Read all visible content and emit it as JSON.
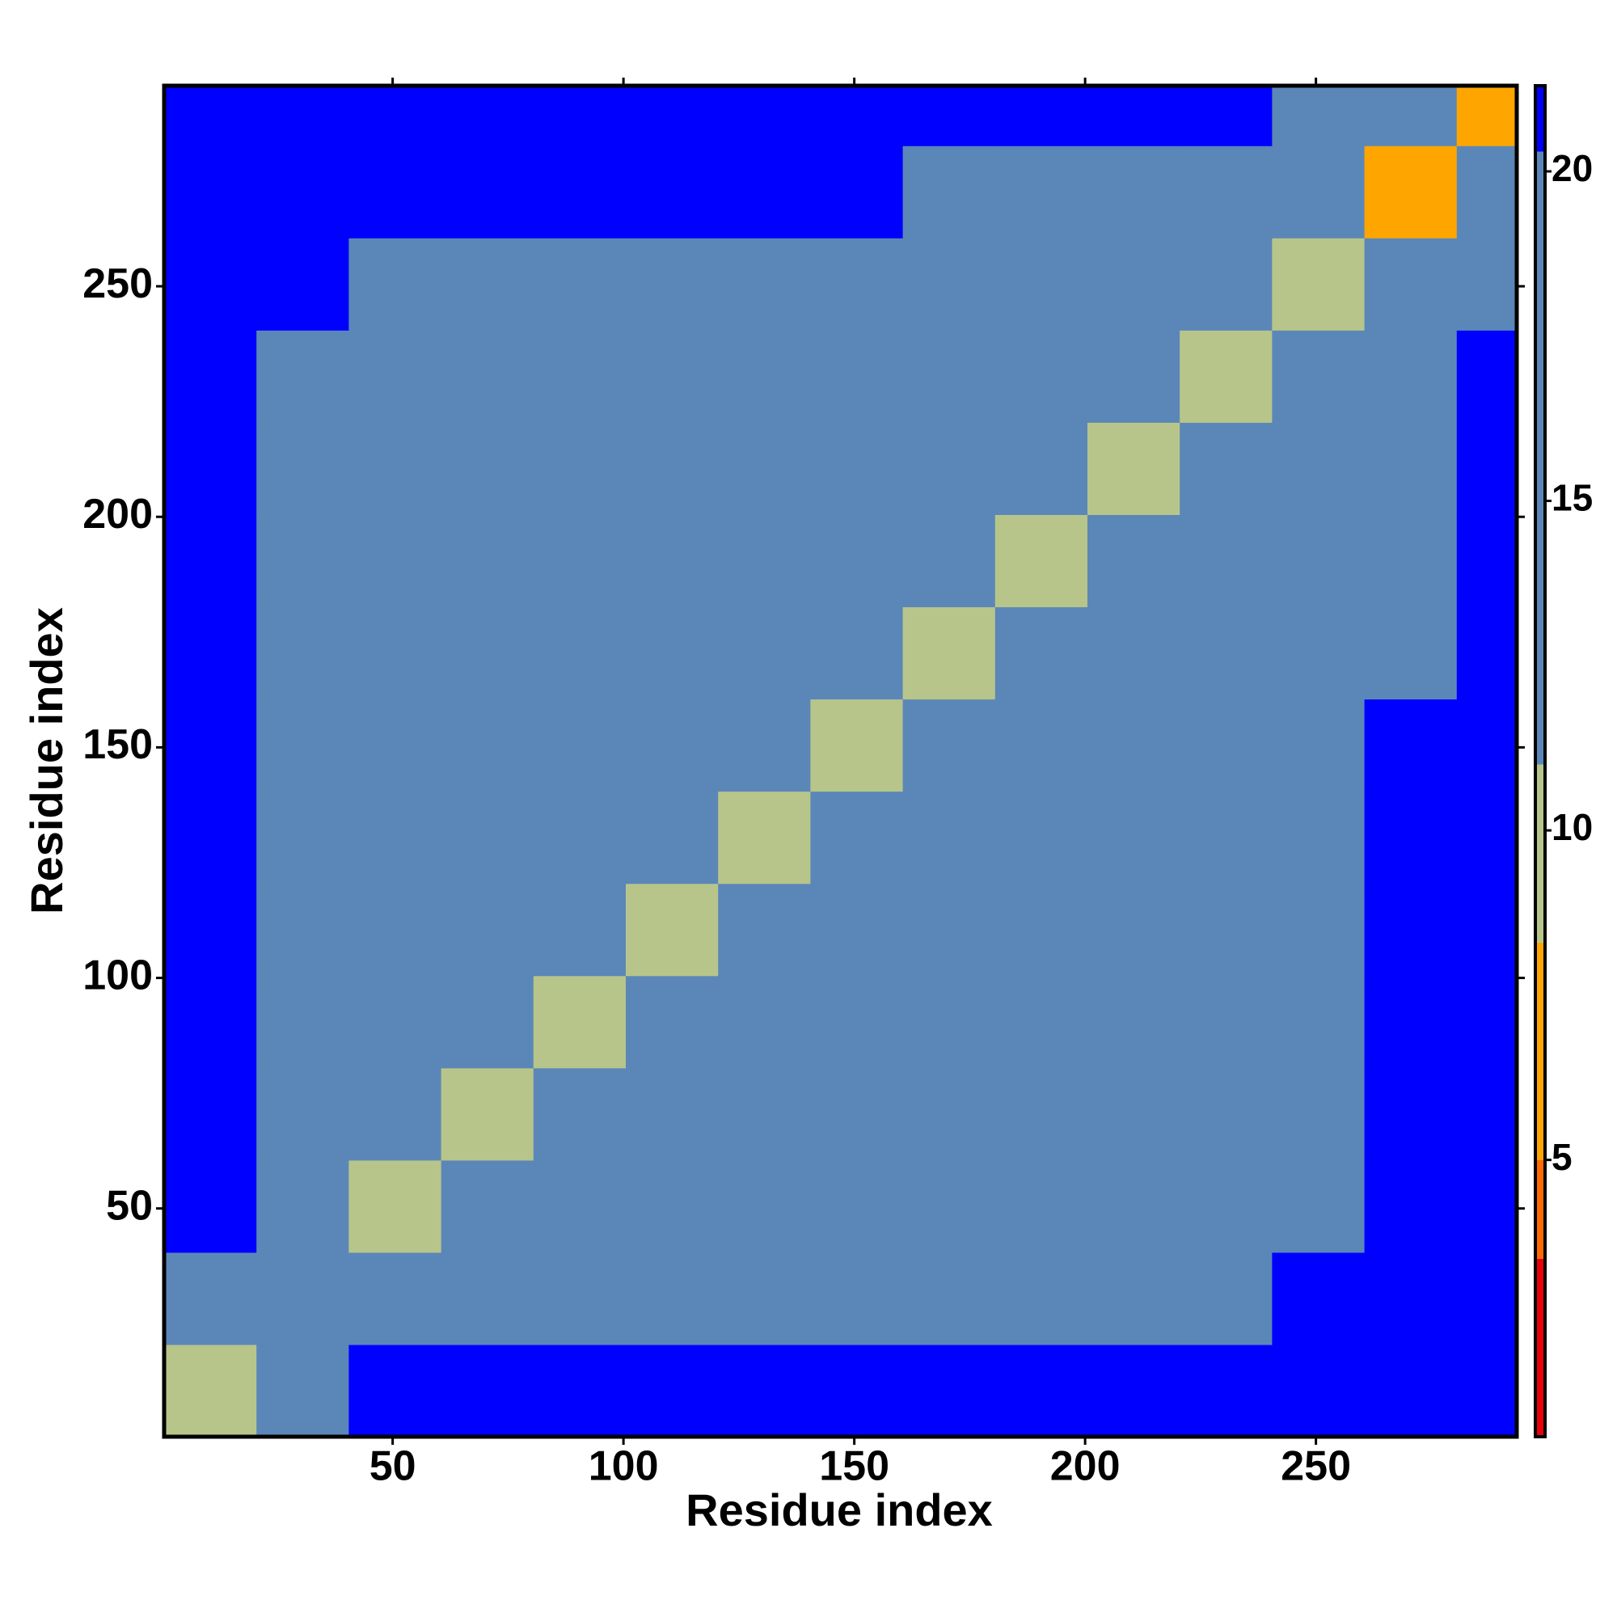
{
  "chart_data": {
    "type": "heatmap",
    "xlabel": "Residue index",
    "ylabel": "Residue index",
    "bins": [
      0.5,
      20.5,
      40.5,
      60.5,
      80.5,
      100.5,
      120.5,
      140.5,
      160.5,
      180.5,
      200.5,
      220.5,
      240.5,
      260.5,
      280.5,
      293.5
    ],
    "values": [
      [
        9,
        19,
        21,
        21,
        21,
        21,
        21,
        21,
        21,
        21,
        21,
        21,
        21,
        21,
        21
      ],
      [
        19,
        12,
        15,
        16,
        17,
        17,
        18,
        20,
        20,
        20,
        20,
        20,
        21,
        21,
        21
      ],
      [
        21,
        15,
        9,
        13,
        14,
        15,
        14,
        17,
        18,
        19,
        18,
        18,
        20,
        21,
        21
      ],
      [
        21,
        16,
        13,
        9,
        12,
        13,
        13,
        17,
        18,
        18,
        18,
        18,
        19,
        21,
        21
      ],
      [
        21,
        17,
        14,
        12,
        9,
        11,
        13,
        17,
        18,
        18,
        18,
        18,
        19,
        21,
        21
      ],
      [
        21,
        17,
        15,
        13,
        11,
        9,
        11,
        16,
        17,
        18,
        18,
        18,
        19,
        21,
        21
      ],
      [
        21,
        18,
        14,
        13,
        13,
        11,
        9,
        13,
        17,
        18,
        18,
        18,
        19,
        21,
        21
      ],
      [
        21,
        20,
        17,
        17,
        17,
        16,
        13,
        9,
        12,
        14,
        15,
        15,
        18,
        21,
        21
      ],
      [
        21,
        20,
        18,
        18,
        18,
        17,
        17,
        12,
        9,
        11,
        13,
        14,
        17,
        20,
        21
      ],
      [
        21,
        20,
        19,
        18,
        18,
        18,
        18,
        14,
        11,
        9,
        11,
        13,
        16,
        20,
        21
      ],
      [
        21,
        20,
        18,
        18,
        18,
        18,
        18,
        15,
        13,
        11,
        9,
        11,
        14,
        19,
        21
      ],
      [
        21,
        20,
        18,
        18,
        18,
        18,
        18,
        15,
        14,
        13,
        11,
        9,
        12,
        18,
        21
      ],
      [
        21,
        21,
        20,
        19,
        19,
        19,
        19,
        18,
        17,
        16,
        14,
        12,
        9,
        15,
        20
      ],
      [
        21,
        21,
        21,
        21,
        21,
        21,
        21,
        21,
        20,
        20,
        19,
        18,
        15,
        8,
        14
      ],
      [
        21,
        21,
        21,
        21,
        21,
        21,
        21,
        21,
        21,
        21,
        21,
        21,
        20,
        14,
        7
      ]
    ],
    "xlim": [
      0.5,
      293.5
    ],
    "ylim": [
      0.5,
      293.5
    ],
    "xticks": [
      50,
      100,
      150,
      200,
      250
    ],
    "yticks": [
      50,
      100,
      150,
      200,
      250
    ],
    "colorbar": {
      "lim": [
        0.8,
        21.3
      ],
      "ticks": [
        5,
        10,
        15,
        20
      ],
      "stops": [
        {
          "value": 0.8,
          "color": "#e8000b"
        },
        {
          "value": 3.5,
          "color": "#ff6a00"
        },
        {
          "value": 5,
          "color": "#ffa500"
        },
        {
          "value": 8.3,
          "color": "#b8c58a"
        },
        {
          "value": 11,
          "color": "#5b87b8"
        },
        {
          "value": 20.3,
          "color": "#0000ff"
        }
      ]
    }
  }
}
